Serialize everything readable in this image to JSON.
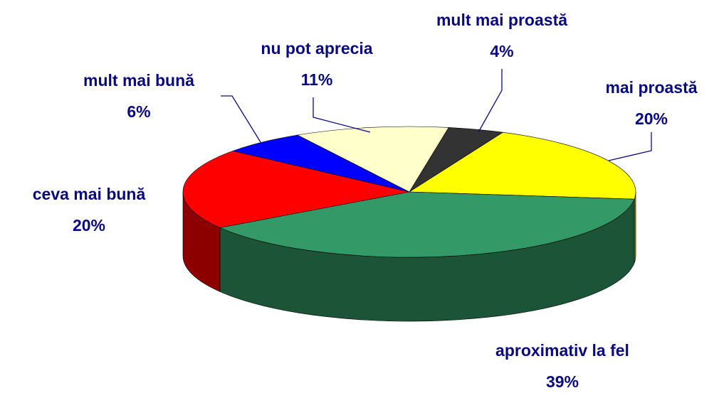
{
  "chart_data": {
    "type": "pie",
    "categories": [
      "mult mai proastă",
      "mai proastă",
      "aproximativ la fel",
      "ceva mai bună",
      "mult mai bună",
      "nu pot aprecia"
    ],
    "values": [
      4,
      20,
      39,
      20,
      6,
      11
    ],
    "value_labels": [
      "4%",
      "20%",
      "39%",
      "20%",
      "6%",
      "11%"
    ],
    "colors": [
      "#333333",
      "#ffff00",
      "#339966",
      "#ff0000",
      "#0000ff",
      "#ffffcc"
    ],
    "three_d": true
  }
}
